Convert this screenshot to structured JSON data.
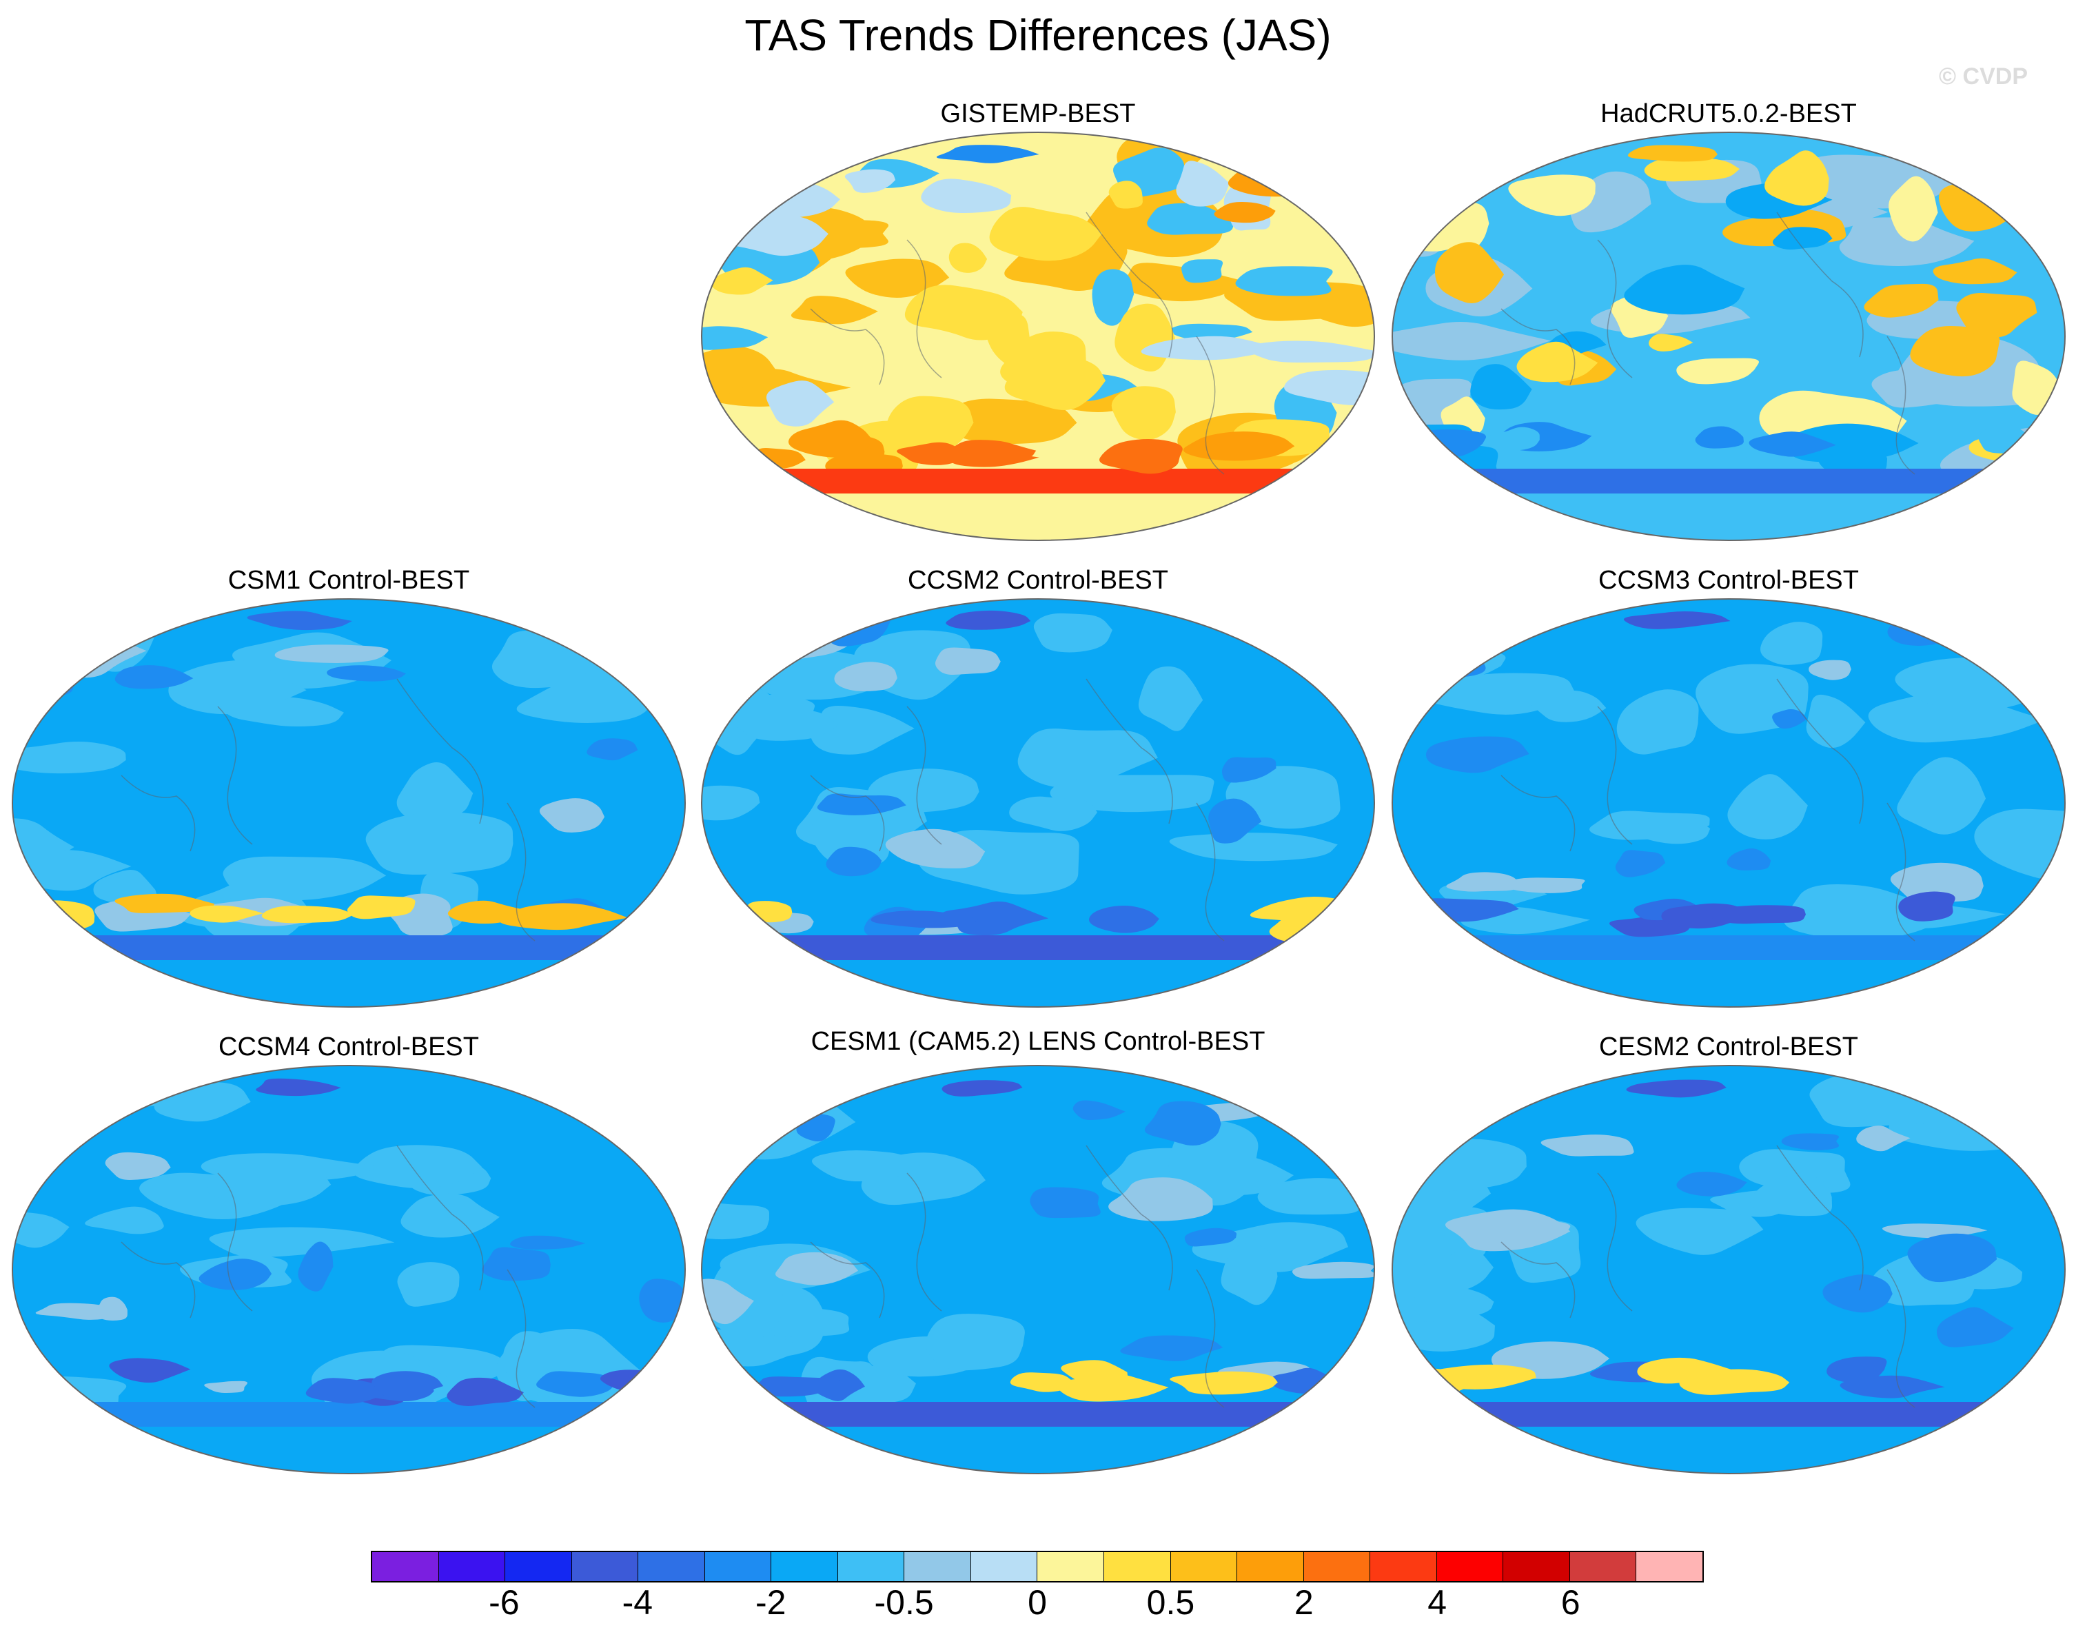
{
  "title": "TAS Trends Differences (JAS)",
  "credit": "© CVDP",
  "panels": [
    {
      "id": "gistemp",
      "label": "GISTEMP-BEST",
      "style": "obs-warm"
    },
    {
      "id": "hadcrut",
      "label": "HadCRUT5.0.2-BEST",
      "style": "obs-mixed"
    },
    {
      "id": "csm1",
      "label": "CSM1 Control-BEST",
      "style": "model-warm-south"
    },
    {
      "id": "ccsm2",
      "label": "CCSM2 Control-BEST",
      "style": "model-mixed-south"
    },
    {
      "id": "ccsm3",
      "label": "CCSM3 Control-BEST",
      "style": "model-cool-south"
    },
    {
      "id": "ccsm4",
      "label": "CCSM4 Control-BEST",
      "style": "model-cool-south"
    },
    {
      "id": "cesm1",
      "label": "CESM1 (CAM5.2) LENS Control-BEST",
      "style": "model-mixed-south"
    },
    {
      "id": "cesm2",
      "label": "CESM2 Control-BEST",
      "style": "model-mixed-south"
    }
  ],
  "colorbar": {
    "colors": [
      "#7b1fe0",
      "#3b12f0",
      "#1428f2",
      "#3c5ad8",
      "#2e70e6",
      "#1e8cf2",
      "#0aa8f5",
      "#3ebff5",
      "#92c8e8",
      "#b8def5",
      "#fcf59a",
      "#ffe040",
      "#fdbf1a",
      "#fd9e0a",
      "#fc7010",
      "#fc3a12",
      "#fd0000",
      "#d20000",
      "#d23c3c",
      "#ffb4b4"
    ],
    "labels": [
      "-6",
      "-4",
      "-2",
      "-0.5",
      "0",
      "0.5",
      "2",
      "4",
      "6"
    ],
    "label_boundaries": [
      2,
      4,
      6,
      8,
      10,
      12,
      14,
      16,
      18
    ]
  }
}
